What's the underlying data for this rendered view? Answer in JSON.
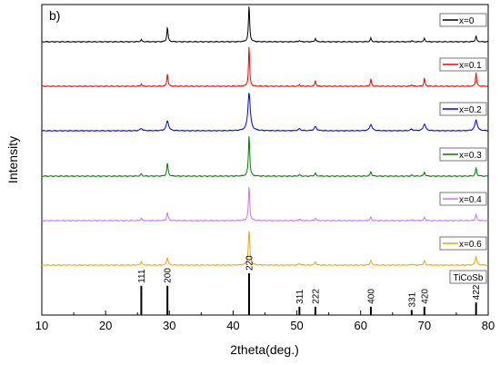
{
  "chart_data": {
    "type": "line",
    "panel_label": "b)",
    "xlabel": "2theta(deg.)",
    "ylabel": "Intensity",
    "xlim": [
      10,
      80
    ],
    "x_ticks": [
      10,
      20,
      30,
      40,
      50,
      60,
      70,
      80
    ],
    "y_ticks_shown": false,
    "grid": false,
    "legend": "per-series label box at right of each pattern",
    "peak_positions": [
      25.6,
      29.7,
      42.5,
      50.4,
      52.9,
      61.6,
      68.0,
      70.0,
      78.1
    ],
    "series": [
      {
        "name": "x=0",
        "color": "#000000",
        "peak_heights": [
          0.06,
          0.4,
          1.0,
          0.04,
          0.09,
          0.1,
          0.03,
          0.09,
          0.16
        ]
      },
      {
        "name": "x=0.1",
        "color": "#ff0000",
        "peak_heights": [
          0.06,
          0.32,
          1.0,
          0.04,
          0.14,
          0.18,
          0.04,
          0.2,
          0.34
        ]
      },
      {
        "name": "x=0.2",
        "color": "#0000ff",
        "peak_heights": [
          0.06,
          0.26,
          1.0,
          0.05,
          0.11,
          0.17,
          0.04,
          0.18,
          0.29
        ]
      },
      {
        "name": "x=0.3",
        "color": "#008000",
        "peak_heights": [
          0.06,
          0.32,
          1.0,
          0.04,
          0.08,
          0.11,
          0.03,
          0.1,
          0.2
        ]
      },
      {
        "name": "x=0.4",
        "color": "#cc77ee",
        "peak_heights": [
          0.07,
          0.24,
          1.0,
          0.05,
          0.08,
          0.1,
          0.03,
          0.09,
          0.18
        ]
      },
      {
        "name": "x=0.6",
        "color": "#f0a800",
        "peak_heights": [
          0.1,
          0.22,
          1.0,
          0.05,
          0.09,
          0.13,
          0.03,
          0.12,
          0.26
        ]
      }
    ],
    "reference": {
      "name": "TiCoSb",
      "color": "#000000",
      "peaks": [
        {
          "x": 25.6,
          "hkl": "111",
          "rel": 0.7
        },
        {
          "x": 29.7,
          "hkl": "200",
          "rel": 0.7
        },
        {
          "x": 42.5,
          "hkl": "220",
          "rel": 1.0
        },
        {
          "x": 50.4,
          "hkl": "311",
          "rel": 0.2
        },
        {
          "x": 52.9,
          "hkl": "222",
          "rel": 0.2
        },
        {
          "x": 61.6,
          "hkl": "400",
          "rel": 0.2
        },
        {
          "x": 68.0,
          "hkl": "331",
          "rel": 0.12
        },
        {
          "x": 70.0,
          "hkl": "420",
          "rel": 0.2
        },
        {
          "x": 78.1,
          "hkl": "422",
          "rel": 0.3
        }
      ]
    }
  }
}
